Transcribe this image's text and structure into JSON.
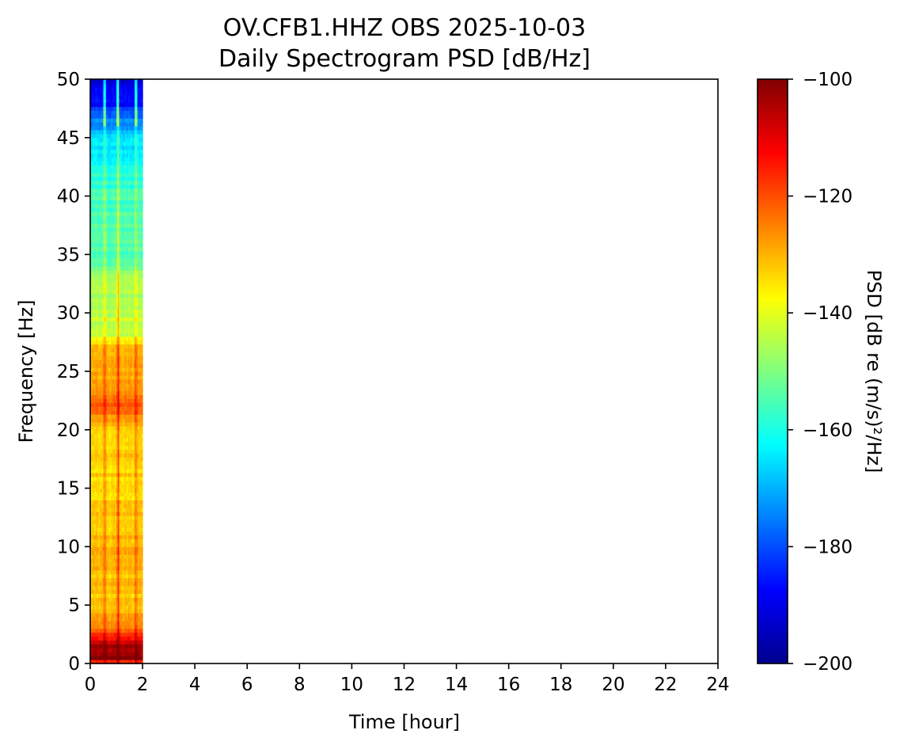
{
  "chart_data": {
    "type": "heatmap",
    "title": "OV.CFB1.HHZ OBS 2025-10-03",
    "subtitle": "Daily Spectrogram PSD [dB/Hz]",
    "xlabel": "Time [hour]",
    "ylabel": "Frequency [Hz]",
    "xlim": [
      0,
      24
    ],
    "ylim": [
      0,
      50
    ],
    "x_ticks": [
      0,
      2,
      4,
      6,
      8,
      10,
      12,
      14,
      16,
      18,
      20,
      22,
      24
    ],
    "y_ticks": [
      0,
      5,
      10,
      15,
      20,
      25,
      30,
      35,
      40,
      45,
      50
    ],
    "data_time_range": [
      0,
      2
    ],
    "colormap": "jet",
    "colorbar": {
      "label": "PSD [dB re (m/s)²/Hz]",
      "range": [
        -200,
        -100
      ],
      "ticks": [
        -200,
        -180,
        -160,
        -140,
        -120,
        -100
      ],
      "tick_labels": [
        "−200",
        "−180",
        "−160",
        "−140",
        "−120",
        "−100"
      ]
    },
    "psd_profile": {
      "frequency": [
        0,
        0.5,
        1.5,
        2.5,
        3,
        5,
        10,
        15,
        20,
        22,
        24,
        26,
        27.5,
        28,
        33,
        35,
        40,
        45,
        47,
        48,
        50
      ],
      "psd_db": [
        -120,
        -102,
        -104,
        -118,
        -126,
        -132,
        -131,
        -134,
        -133,
        -122,
        -130,
        -128,
        -134,
        -142,
        -148,
        -154,
        -156,
        -166,
        -178,
        -188,
        -192
      ]
    }
  }
}
